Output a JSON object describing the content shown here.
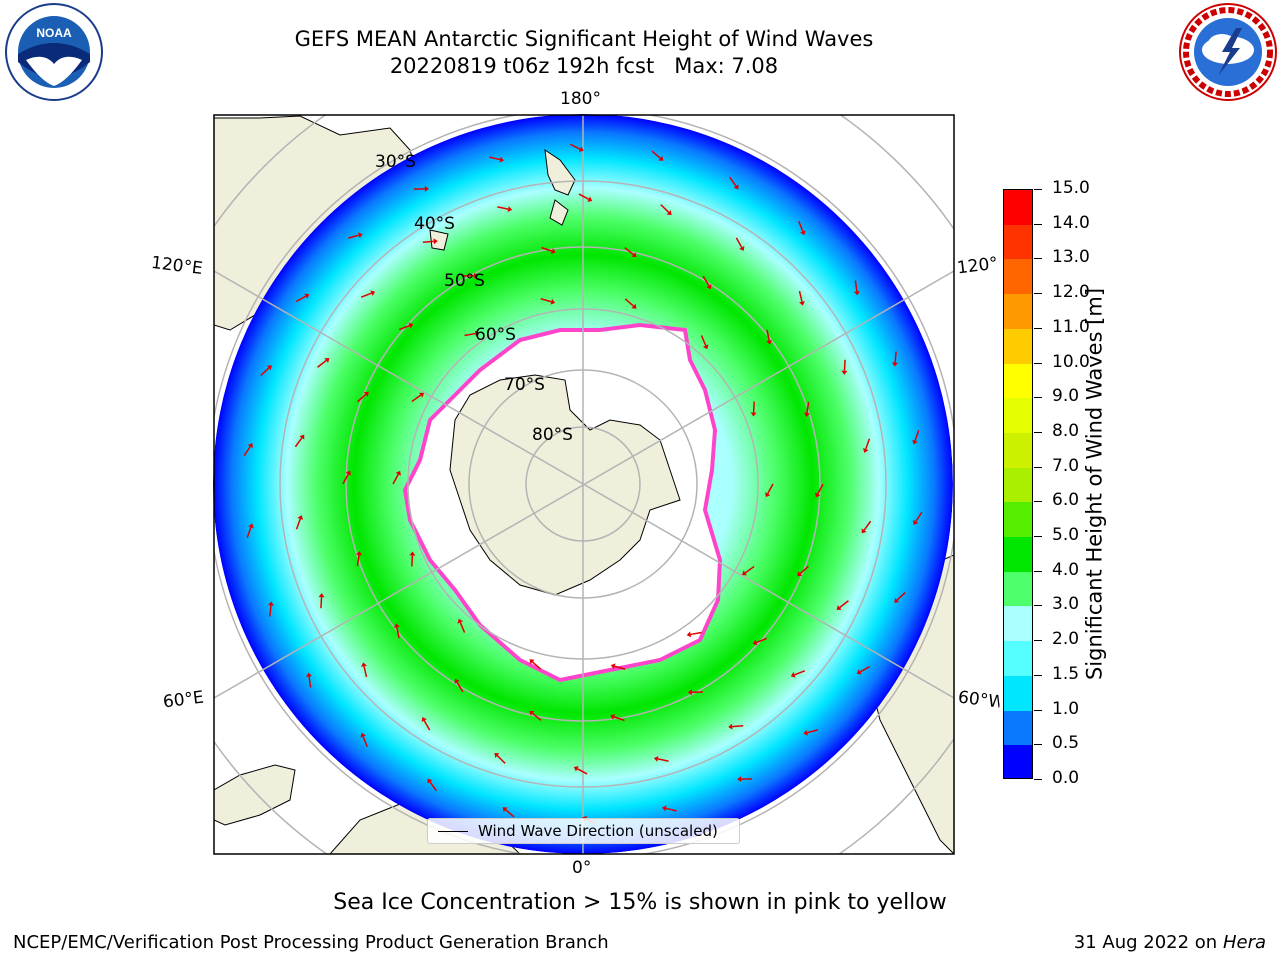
{
  "header": {
    "title": "GEFS MEAN Antarctic Significant Height of Wind Waves",
    "subtitle": "20220819 t06z 192h fcst   Max: 7.08"
  },
  "map": {
    "projection": "south-polar-stereographic",
    "longitude_labels": {
      "top": "180°",
      "bottom": "0°",
      "upper_left": "120°E",
      "lower_left": "60°E",
      "upper_right": "120°",
      "lower_right": "60°W"
    },
    "latitude_labels": [
      "30°S",
      "40°S",
      "50°S",
      "60°S",
      "70°S",
      "80°S"
    ],
    "colors": {
      "land": "#efefdb",
      "ice_free_sea": "#ffffff",
      "sea_ice_edge": "#ff44cc",
      "arrow": "#e00000"
    }
  },
  "legend": {
    "label": "Wind Wave Direction (unscaled)"
  },
  "colorbar": {
    "title": "Significant Height of Wind Waves [m]",
    "ticks": [
      "0.0",
      "0.5",
      "1.0",
      "1.5",
      "2.0",
      "3.0",
      "4.0",
      "5.0",
      "6.0",
      "7.0",
      "8.0",
      "9.0",
      "10.0",
      "11.0",
      "12.0",
      "13.0",
      "14.0",
      "15.0"
    ],
    "colors": [
      "#0000ff",
      "#0a78ff",
      "#00e6ff",
      "#55ffff",
      "#aaffff",
      "#4dff6a",
      "#00e600",
      "#55ee00",
      "#aaee00",
      "#ccf000",
      "#e6ff00",
      "#ffff00",
      "#ffcc00",
      "#ff9900",
      "#ff6600",
      "#ff3300",
      "#ff0000"
    ]
  },
  "footer": {
    "note": "Sea Ice Concentration > 15% is shown in pink to yellow",
    "credit": "NCEP/EMC/Verification Post Processing Product Generation Branch",
    "date": "31 Aug 2022 on",
    "machine": "Hera"
  }
}
